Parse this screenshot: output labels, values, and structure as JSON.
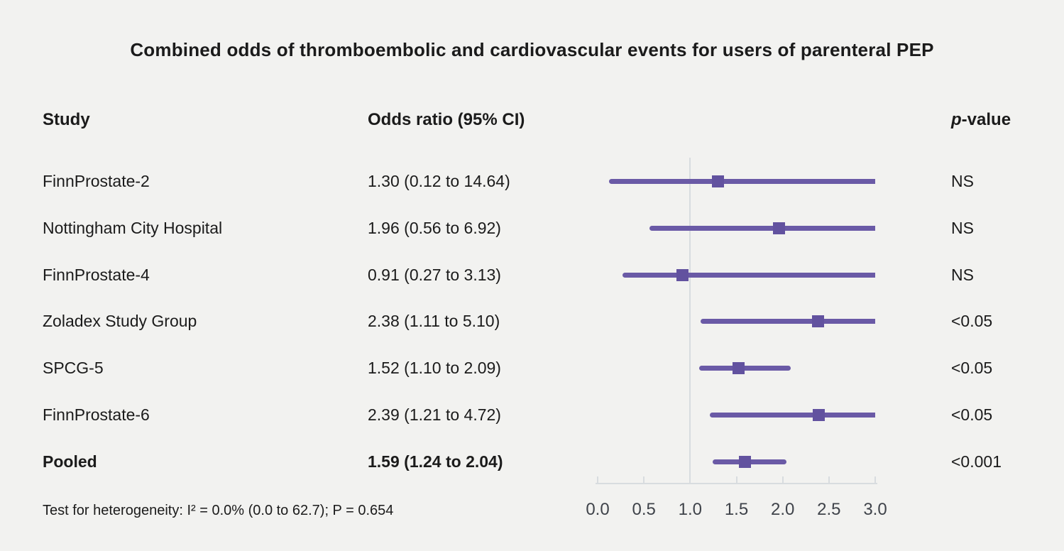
{
  "title": "Combined odds of thromboembolic and cardiovascular events for users of parenteral PEP",
  "header": {
    "study": "Study",
    "odds_ratio": "Odds ratio (95% CI)",
    "p_value_italic": "p",
    "p_value_rest": "-value"
  },
  "footnote": "Test for heterogeneity: I² = 0.0% (0.0 to 62.7); P = 0.654",
  "colors": {
    "background": "#f2f2f0",
    "text": "#1b1b1b",
    "ci_line": "#6a5aa6",
    "marker": "#62529f",
    "reference_line": "#d8dcdf",
    "axis_line": "#d8dcdf",
    "axis_text": "#3f434a"
  },
  "chart_data": {
    "type": "forest",
    "title": "Combined odds of thromboembolic and cardiovascular events for users of parenteral PEP",
    "xlabel": "",
    "xlim": [
      0.0,
      3.0
    ],
    "x_ticks": [
      {
        "value": 0.0,
        "label": "0.0"
      },
      {
        "value": 0.5,
        "label": "0.5"
      },
      {
        "value": 1.0,
        "label": "1.0"
      },
      {
        "value": 1.5,
        "label": "1.5"
      },
      {
        "value": 2.0,
        "label": "2.0"
      },
      {
        "value": 2.5,
        "label": "2.5"
      },
      {
        "value": 3.0,
        "label": "3.0"
      }
    ],
    "reference_line": 1.0,
    "columns": [
      "Study",
      "Odds ratio (95% CI)",
      "p-value"
    ],
    "rows": [
      {
        "study": "FinnProstate-2",
        "or_label": "1.30 (0.12 to 14.64)",
        "estimate": 1.3,
        "ci_low": 0.12,
        "ci_high": 14.64,
        "p": "NS",
        "bold": false
      },
      {
        "study": "Nottingham City Hospital",
        "or_label": "1.96 (0.56 to 6.92)",
        "estimate": 1.96,
        "ci_low": 0.56,
        "ci_high": 6.92,
        "p": "NS",
        "bold": false
      },
      {
        "study": "FinnProstate-4",
        "or_label": "0.91 (0.27 to 3.13)",
        "estimate": 0.91,
        "ci_low": 0.27,
        "ci_high": 3.13,
        "p": "NS",
        "bold": false
      },
      {
        "study": "Zoladex Study Group",
        "or_label": "2.38 (1.11 to 5.10)",
        "estimate": 2.38,
        "ci_low": 1.11,
        "ci_high": 5.1,
        "p": "<0.05",
        "bold": false
      },
      {
        "study": "SPCG-5",
        "or_label": "1.52 (1.10 to 2.09)",
        "estimate": 1.52,
        "ci_low": 1.1,
        "ci_high": 2.09,
        "p": "<0.05",
        "bold": false
      },
      {
        "study": "FinnProstate-6",
        "or_label": "2.39 (1.21 to 4.72)",
        "estimate": 2.39,
        "ci_low": 1.21,
        "ci_high": 4.72,
        "p": "<0.05",
        "bold": false
      },
      {
        "study": "Pooled",
        "or_label": "1.59 (1.24 to 2.04)",
        "estimate": 1.59,
        "ci_low": 1.24,
        "ci_high": 2.04,
        "p": "<0.001",
        "bold": true
      }
    ],
    "heterogeneity_note": "Test for heterogeneity: I² = 0.0% (0.0 to 62.7); P = 0.654",
    "grid": false,
    "legend": false
  }
}
